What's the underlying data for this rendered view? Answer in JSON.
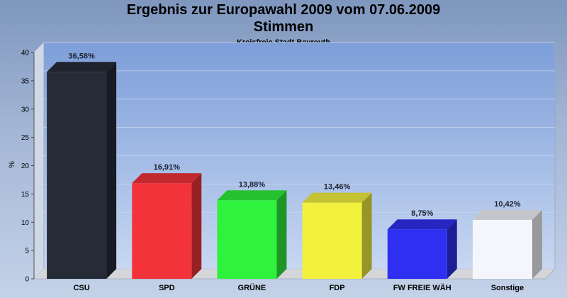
{
  "chart_data": {
    "type": "bar",
    "title": "Ergebnis zur Europawahl 2009 vom 07.06.2009",
    "title_line2": "Stimmen",
    "subtitle": "Kreisfreie Stadt Bayreuth",
    "ylabel": "%",
    "xlabel": "",
    "ylim": [
      0,
      40
    ],
    "yticks": [
      0,
      5,
      10,
      15,
      20,
      25,
      30,
      35,
      40
    ],
    "grid": true,
    "categories": [
      "CSU",
      "SPD",
      "GRÜNE",
      "FDP",
      "FW FREIE WÄH",
      "Sonstige"
    ],
    "values": [
      36.58,
      16.91,
      13.88,
      13.46,
      8.75,
      10.42
    ],
    "value_labels": [
      "36,58%",
      "16,91%",
      "13,88%",
      "13,46%",
      "8,75%",
      "10,42%"
    ],
    "colors": [
      "#262b38",
      "#f23339",
      "#2ef23c",
      "#f2f23e",
      "#2f2ff2",
      "#f4f6fb"
    ]
  }
}
